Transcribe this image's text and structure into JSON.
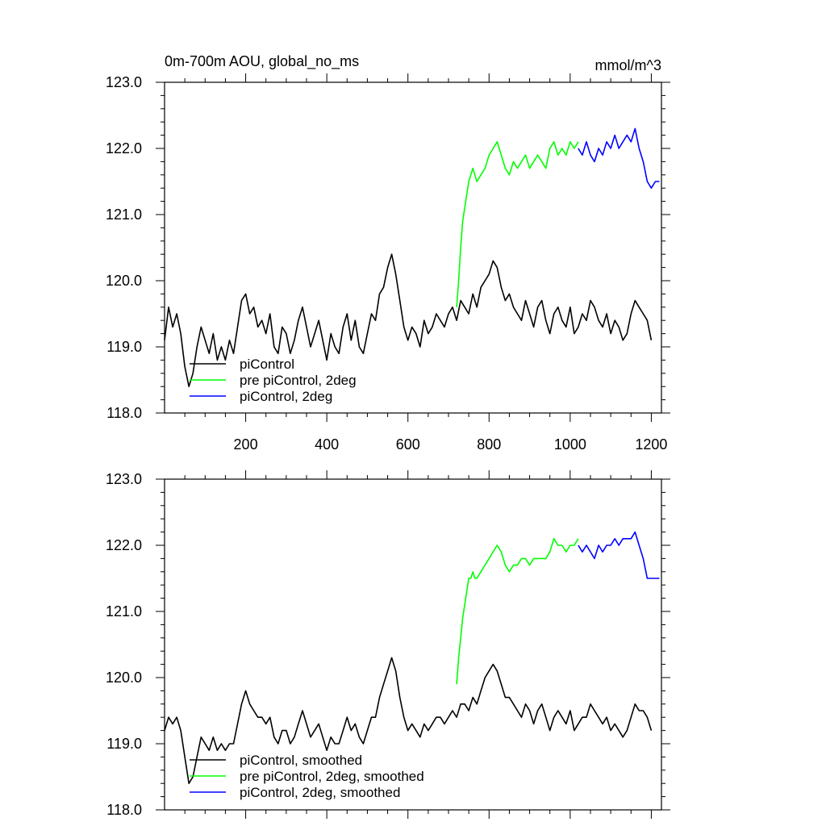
{
  "chart_data": [
    {
      "type": "line",
      "title": "0m-700m AOU, global_no_ms",
      "units": "mmol/m^3",
      "xlim": [
        0,
        1225
      ],
      "ylim": [
        118.0,
        123.0
      ],
      "x_tick_labels": [
        "200",
        "400",
        "600",
        "800",
        "1000",
        "1200"
      ],
      "y_tick_labels": [
        "118.0",
        "119.0",
        "120.0",
        "121.0",
        "122.0",
        "123.0"
      ],
      "legend_placement": "lower-left",
      "series": [
        {
          "name": "piControl",
          "color": "#000000",
          "x": [
            0,
            10,
            20,
            30,
            40,
            50,
            60,
            70,
            80,
            90,
            100,
            110,
            120,
            130,
            140,
            150,
            160,
            170,
            180,
            190,
            200,
            210,
            220,
            230,
            240,
            250,
            260,
            270,
            280,
            290,
            300,
            310,
            320,
            330,
            340,
            350,
            360,
            370,
            380,
            390,
            400,
            410,
            420,
            430,
            440,
            450,
            460,
            470,
            480,
            490,
            500,
            510,
            520,
            530,
            540,
            550,
            560,
            570,
            580,
            590,
            600,
            610,
            620,
            630,
            640,
            650,
            660,
            670,
            680,
            690,
            700,
            710,
            720,
            730,
            740,
            750,
            760,
            770,
            780,
            790,
            800,
            810,
            820,
            830,
            840,
            850,
            860,
            870,
            880,
            890,
            900,
            910,
            920,
            930,
            940,
            950,
            960,
            970,
            980,
            990,
            1000,
            1010,
            1020,
            1030,
            1040,
            1050,
            1060,
            1070,
            1080,
            1090,
            1100,
            1110,
            1120,
            1130,
            1140,
            1150,
            1160,
            1170,
            1180,
            1190,
            1200
          ],
          "values": [
            119.1,
            119.6,
            119.3,
            119.5,
            119.2,
            118.7,
            118.4,
            118.6,
            119.0,
            119.3,
            119.1,
            118.9,
            119.2,
            118.8,
            119.0,
            118.8,
            119.1,
            118.9,
            119.3,
            119.7,
            119.8,
            119.5,
            119.6,
            119.3,
            119.4,
            119.2,
            119.5,
            119.0,
            118.9,
            119.3,
            119.2,
            118.9,
            119.1,
            119.4,
            119.6,
            119.3,
            119.0,
            119.2,
            119.4,
            119.1,
            118.8,
            119.2,
            119.0,
            118.9,
            119.3,
            119.5,
            119.1,
            119.4,
            119.0,
            118.9,
            119.2,
            119.5,
            119.4,
            119.8,
            119.9,
            120.2,
            120.4,
            120.1,
            119.7,
            119.3,
            119.1,
            119.3,
            119.2,
            119.0,
            119.4,
            119.2,
            119.3,
            119.5,
            119.4,
            119.3,
            119.5,
            119.6,
            119.4,
            119.7,
            119.6,
            119.5,
            119.8,
            119.6,
            119.9,
            120.0,
            120.1,
            120.3,
            120.2,
            119.9,
            119.7,
            119.8,
            119.6,
            119.5,
            119.4,
            119.7,
            119.5,
            119.3,
            119.6,
            119.7,
            119.4,
            119.2,
            119.5,
            119.6,
            119.4,
            119.3,
            119.6,
            119.2,
            119.3,
            119.5,
            119.4,
            119.7,
            119.6,
            119.4,
            119.3,
            119.5,
            119.2,
            119.4,
            119.3,
            119.1,
            119.2,
            119.5,
            119.7,
            119.6,
            119.5,
            119.4,
            119.1
          ]
        },
        {
          "name": "pre piControl, 2deg",
          "color": "#00ff00",
          "x": [
            720,
            725,
            730,
            735,
            740,
            745,
            750,
            755,
            760,
            765,
            770,
            780,
            790,
            800,
            810,
            820,
            830,
            840,
            850,
            860,
            870,
            880,
            890,
            900,
            910,
            920,
            930,
            940,
            950,
            960,
            970,
            980,
            990,
            1000,
            1010,
            1020
          ],
          "values": [
            119.6,
            120.0,
            120.5,
            120.9,
            121.1,
            121.3,
            121.5,
            121.6,
            121.7,
            121.6,
            121.5,
            121.6,
            121.7,
            121.9,
            122.0,
            122.1,
            121.9,
            121.7,
            121.6,
            121.8,
            121.7,
            121.8,
            121.9,
            121.7,
            121.8,
            121.9,
            121.8,
            121.7,
            122.0,
            122.1,
            121.9,
            122.0,
            121.9,
            122.1,
            122.0,
            122.1
          ]
        },
        {
          "name": "piControl, 2deg",
          "color": "#0000ff",
          "x": [
            1020,
            1030,
            1040,
            1050,
            1060,
            1070,
            1080,
            1090,
            1100,
            1110,
            1120,
            1130,
            1140,
            1150,
            1160,
            1170,
            1180,
            1190,
            1200,
            1210,
            1220
          ],
          "values": [
            122.0,
            121.9,
            122.1,
            121.9,
            121.8,
            122.0,
            121.9,
            122.1,
            122.0,
            122.2,
            122.0,
            122.1,
            122.2,
            122.1,
            122.3,
            122.0,
            121.8,
            121.5,
            121.4,
            121.5,
            121.5
          ]
        }
      ]
    },
    {
      "type": "line",
      "xlim": [
        0,
        1225
      ],
      "ylim": [
        118.0,
        123.0
      ],
      "y_tick_labels": [
        "118.0",
        "119.0",
        "120.0",
        "121.0",
        "122.0",
        "123.0"
      ],
      "legend_placement": "lower-left",
      "series": [
        {
          "name": "piControl, smoothed",
          "color": "#000000",
          "x": [
            0,
            10,
            20,
            30,
            40,
            50,
            60,
            70,
            80,
            90,
            100,
            110,
            120,
            130,
            140,
            150,
            160,
            170,
            180,
            190,
            200,
            210,
            220,
            230,
            240,
            250,
            260,
            270,
            280,
            290,
            300,
            310,
            320,
            330,
            340,
            350,
            360,
            370,
            380,
            390,
            400,
            410,
            420,
            430,
            440,
            450,
            460,
            470,
            480,
            490,
            500,
            510,
            520,
            530,
            540,
            550,
            560,
            570,
            580,
            590,
            600,
            610,
            620,
            630,
            640,
            650,
            660,
            670,
            680,
            690,
            700,
            710,
            720,
            730,
            740,
            750,
            760,
            770,
            780,
            790,
            800,
            810,
            820,
            830,
            840,
            850,
            860,
            870,
            880,
            890,
            900,
            910,
            920,
            930,
            940,
            950,
            960,
            970,
            980,
            990,
            1000,
            1010,
            1020,
            1030,
            1040,
            1050,
            1060,
            1070,
            1080,
            1090,
            1100,
            1110,
            1120,
            1130,
            1140,
            1150,
            1160,
            1170,
            1180,
            1190,
            1200
          ],
          "values": [
            119.2,
            119.4,
            119.3,
            119.4,
            119.2,
            118.8,
            118.4,
            118.5,
            118.8,
            119.1,
            119.0,
            118.9,
            119.1,
            118.9,
            119.0,
            118.9,
            119.0,
            119.0,
            119.3,
            119.6,
            119.8,
            119.6,
            119.5,
            119.4,
            119.4,
            119.3,
            119.4,
            119.1,
            119.0,
            119.2,
            119.2,
            119.0,
            119.1,
            119.3,
            119.5,
            119.3,
            119.1,
            119.2,
            119.3,
            119.1,
            118.9,
            119.1,
            119.0,
            119.0,
            119.2,
            119.4,
            119.2,
            119.3,
            119.1,
            119.0,
            119.2,
            119.4,
            119.4,
            119.7,
            119.9,
            120.1,
            120.3,
            120.1,
            119.7,
            119.4,
            119.2,
            119.3,
            119.2,
            119.1,
            119.3,
            119.2,
            119.3,
            119.4,
            119.4,
            119.3,
            119.4,
            119.5,
            119.4,
            119.6,
            119.6,
            119.5,
            119.7,
            119.6,
            119.8,
            120.0,
            120.1,
            120.2,
            120.1,
            119.9,
            119.7,
            119.7,
            119.6,
            119.5,
            119.4,
            119.6,
            119.5,
            119.3,
            119.5,
            119.6,
            119.4,
            119.2,
            119.4,
            119.5,
            119.4,
            119.3,
            119.5,
            119.2,
            119.3,
            119.4,
            119.4,
            119.6,
            119.5,
            119.4,
            119.3,
            119.4,
            119.2,
            119.3,
            119.2,
            119.1,
            119.2,
            119.4,
            119.6,
            119.5,
            119.5,
            119.4,
            119.2
          ]
        },
        {
          "name": "pre piControl, 2deg, smoothed",
          "color": "#00ff00",
          "x": [
            720,
            725,
            730,
            735,
            740,
            745,
            750,
            755,
            760,
            765,
            770,
            780,
            790,
            800,
            810,
            820,
            830,
            840,
            850,
            860,
            870,
            880,
            890,
            900,
            910,
            920,
            930,
            940,
            950,
            960,
            970,
            980,
            990,
            1000,
            1010,
            1020
          ],
          "values": [
            119.9,
            120.3,
            120.6,
            120.9,
            121.1,
            121.3,
            121.5,
            121.5,
            121.6,
            121.5,
            121.5,
            121.6,
            121.7,
            121.8,
            121.9,
            122.0,
            121.9,
            121.7,
            121.6,
            121.7,
            121.7,
            121.8,
            121.8,
            121.7,
            121.8,
            121.8,
            121.8,
            121.8,
            121.9,
            122.1,
            122.0,
            122.0,
            121.9,
            122.0,
            122.0,
            122.1
          ]
        },
        {
          "name": "piControl, 2deg, smoothed",
          "color": "#0000ff",
          "x": [
            1020,
            1030,
            1040,
            1050,
            1060,
            1070,
            1080,
            1090,
            1100,
            1110,
            1120,
            1130,
            1140,
            1150,
            1160,
            1170,
            1180,
            1190,
            1200,
            1210,
            1220
          ],
          "values": [
            122.0,
            121.9,
            122.0,
            121.9,
            121.8,
            122.0,
            121.9,
            122.0,
            122.0,
            122.1,
            122.0,
            122.1,
            122.1,
            122.1,
            122.2,
            122.0,
            121.8,
            121.5,
            121.5,
            121.5,
            121.5
          ]
        }
      ]
    }
  ]
}
